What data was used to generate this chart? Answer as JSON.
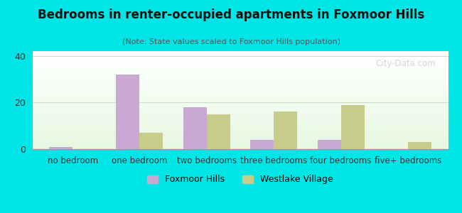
{
  "categories": [
    "no bedroom",
    "one bedroom",
    "two bedrooms",
    "three bedrooms",
    "four bedrooms",
    "five+ bedrooms"
  ],
  "foxmoor_hills": [
    1,
    32,
    18,
    4,
    4,
    0
  ],
  "westlake_village": [
    0,
    7,
    15,
    16,
    19,
    3
  ],
  "foxmoor_color": "#c9a8d4",
  "westlake_color": "#c8cc8a",
  "title": "Bedrooms in renter-occupied apartments in Foxmoor Hills",
  "subtitle": "(Note: State values scaled to Foxmoor Hills population)",
  "legend_labels": [
    "Foxmoor Hills",
    "Westlake Village"
  ],
  "ylim": [
    0,
    42
  ],
  "yticks": [
    0,
    20,
    40
  ],
  "background_color": "#00e5e5",
  "bar_width": 0.35,
  "watermark": "City-Data.com"
}
